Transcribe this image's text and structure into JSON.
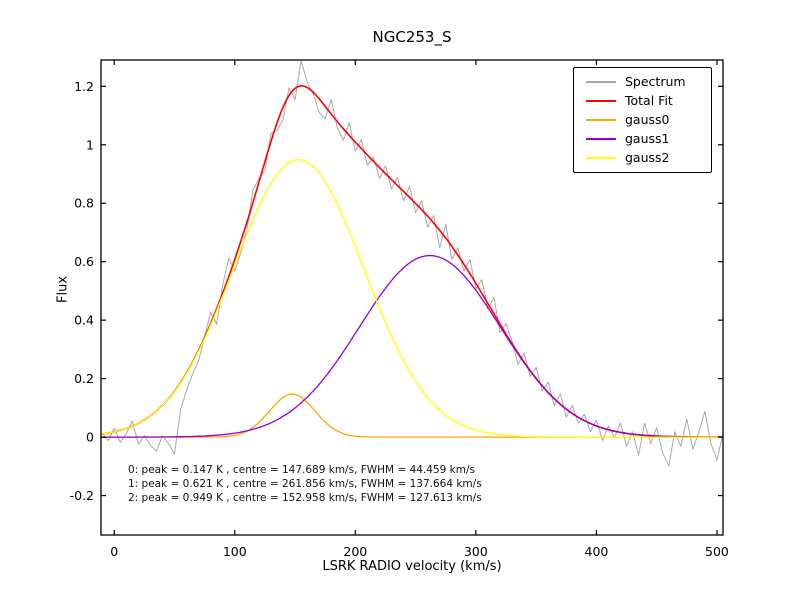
{
  "title": "NGC253_S",
  "axes": {
    "xlabel": "LSRK RADIO velocity (km/s)",
    "ylabel": "Flux",
    "xlim": [
      -11,
      505
    ],
    "ylim": [
      -0.335,
      1.29
    ],
    "xticks": [
      0,
      100,
      200,
      300,
      400,
      500
    ],
    "xtick_labels": [
      "0",
      "100",
      "200",
      "300",
      "400",
      "500"
    ],
    "yticks": [
      -0.2,
      0,
      0.2,
      0.4,
      0.6,
      0.8,
      1,
      1.2
    ],
    "ytick_labels": [
      "-0.2",
      "0",
      "0.2",
      "0.4",
      "0.6",
      "0.8",
      "1",
      "1.2"
    ],
    "grid": false
  },
  "legend": {
    "position": "upper right",
    "entries": [
      {
        "label": "Spectrum",
        "color": "#a8a8a8"
      },
      {
        "label": "Total Fit",
        "color": "#ff0000"
      },
      {
        "label": "gauss0",
        "color": "#ffa500"
      },
      {
        "label": "gauss1",
        "color": "#9400d3"
      },
      {
        "label": "gauss2",
        "color": "#ffff00"
      }
    ]
  },
  "annotation": {
    "lines": [
      "0: peak = 0.147 K , centre = 147.689 km/s, FWHM = 44.459 km/s",
      "1: peak = 0.621 K , centre = 261.856 km/s, FWHM = 137.664 km/s",
      "2: peak = 0.949 K , centre = 152.958 km/s, FWHM = 127.613 km/s"
    ]
  },
  "chart_data": {
    "type": "line",
    "title": "NGC253_S",
    "xlabel": "LSRK RADIO velocity (km/s)",
    "ylabel": "Flux",
    "xlim": [
      -11,
      505
    ],
    "ylim": [
      -0.335,
      1.29
    ],
    "grid": false,
    "legend_position": "upper right",
    "series": [
      {
        "name": "Spectrum",
        "kind": "sampled",
        "color": "#a8a8a8",
        "line_width": 1,
        "x0": -10,
        "dx": 5,
        "values": [
          0.012,
          -0.012,
          0.03,
          -0.018,
          0.012,
          0.055,
          -0.025,
          0.005,
          -0.028,
          -0.048,
          0.005,
          -0.022,
          -0.058,
          0.095,
          0.16,
          0.215,
          0.262,
          0.345,
          0.428,
          0.385,
          0.52,
          0.612,
          0.568,
          0.63,
          0.71,
          0.845,
          0.885,
          0.912,
          1.04,
          1.048,
          1.085,
          1.195,
          1.155,
          1.288,
          1.215,
          1.175,
          1.11,
          1.088,
          1.155,
          1.058,
          1.015,
          1.075,
          0.978,
          1.018,
          0.93,
          0.958,
          0.885,
          0.928,
          0.848,
          0.888,
          0.808,
          0.858,
          0.768,
          0.808,
          0.718,
          0.758,
          0.648,
          0.728,
          0.608,
          0.648,
          0.568,
          0.608,
          0.508,
          0.538,
          0.438,
          0.478,
          0.358,
          0.388,
          0.328,
          0.248,
          0.288,
          0.208,
          0.238,
          0.158,
          0.188,
          0.108,
          0.148,
          0.068,
          0.108,
          0.048,
          0.078,
          0.018,
          0.058,
          -0.012,
          0.038,
          -0.002,
          0.048,
          -0.032,
          0.018,
          -0.062,
          0.048,
          -0.022,
          0.032,
          -0.055,
          -0.098,
          0.018,
          -0.032,
          0.062,
          -0.042,
          0.018,
          0.088,
          -0.022,
          -0.078,
          0.012
        ]
      },
      {
        "name": "Total Fit",
        "kind": "sum_of_gaussians",
        "color": "#ff0000",
        "line_width": 1.6,
        "of": [
          "gauss0",
          "gauss1",
          "gauss2"
        ]
      },
      {
        "name": "gauss0",
        "kind": "gaussian",
        "color": "#ffa500",
        "line_width": 1.3,
        "peak": 0.147,
        "centre": 147.689,
        "fwhm": 44.459
      },
      {
        "name": "gauss1",
        "kind": "gaussian",
        "color": "#9400d3",
        "line_width": 1.3,
        "peak": 0.621,
        "centre": 261.856,
        "fwhm": 137.664
      },
      {
        "name": "gauss2",
        "kind": "gaussian",
        "color": "#ffff00",
        "line_width": 1.3,
        "peak": 0.949,
        "centre": 152.958,
        "fwhm": 127.613
      }
    ]
  }
}
